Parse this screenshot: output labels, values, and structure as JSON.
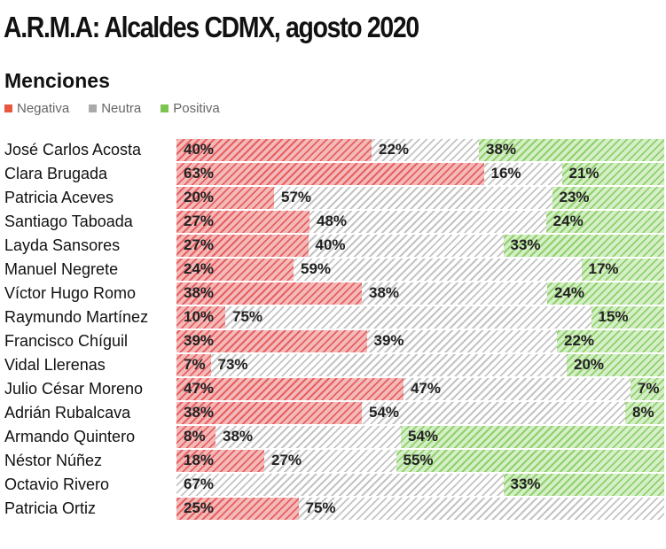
{
  "chart_data": {
    "type": "bar",
    "stacked": true,
    "orientation": "horizontal",
    "title": "A.R.M.A: Alcaldes CDMX, agosto 2020",
    "subtitle": "Menciones",
    "legend": {
      "placement": "top-left",
      "entries": [
        "Negativa",
        "Neutra",
        "Positiva"
      ]
    },
    "colors": {
      "Negativa": "#e66060",
      "Neutra": "#c4c4c4",
      "Positiva": "#8fd06c"
    },
    "unit": "%",
    "xlim": [
      0,
      100
    ],
    "categories": [
      "José Carlos Acosta",
      "Clara Brugada",
      "Patricia Aceves",
      "Santiago Taboada",
      "Layda Sansores",
      "Manuel Negrete",
      "Víctor Hugo Romo",
      "Raymundo Martínez",
      "Francisco Chíguil",
      "Vidal Llerenas",
      "Julio César Moreno",
      "Adrián Rubalcava",
      "Armando Quintero",
      "Néstor Núñez",
      "Octavio Rivero",
      "Patricia Ortiz"
    ],
    "series": [
      {
        "name": "Negativa",
        "values": [
          40,
          63,
          20,
          27,
          27,
          24,
          38,
          10,
          39,
          7,
          47,
          38,
          8,
          18,
          0,
          25
        ]
      },
      {
        "name": "Neutra",
        "values": [
          22,
          16,
          57,
          48,
          40,
          59,
          38,
          75,
          39,
          73,
          47,
          54,
          38,
          27,
          67,
          75
        ]
      },
      {
        "name": "Positiva",
        "values": [
          38,
          21,
          23,
          24,
          33,
          17,
          24,
          15,
          22,
          20,
          7,
          8,
          54,
          55,
          33,
          0
        ]
      }
    ]
  }
}
